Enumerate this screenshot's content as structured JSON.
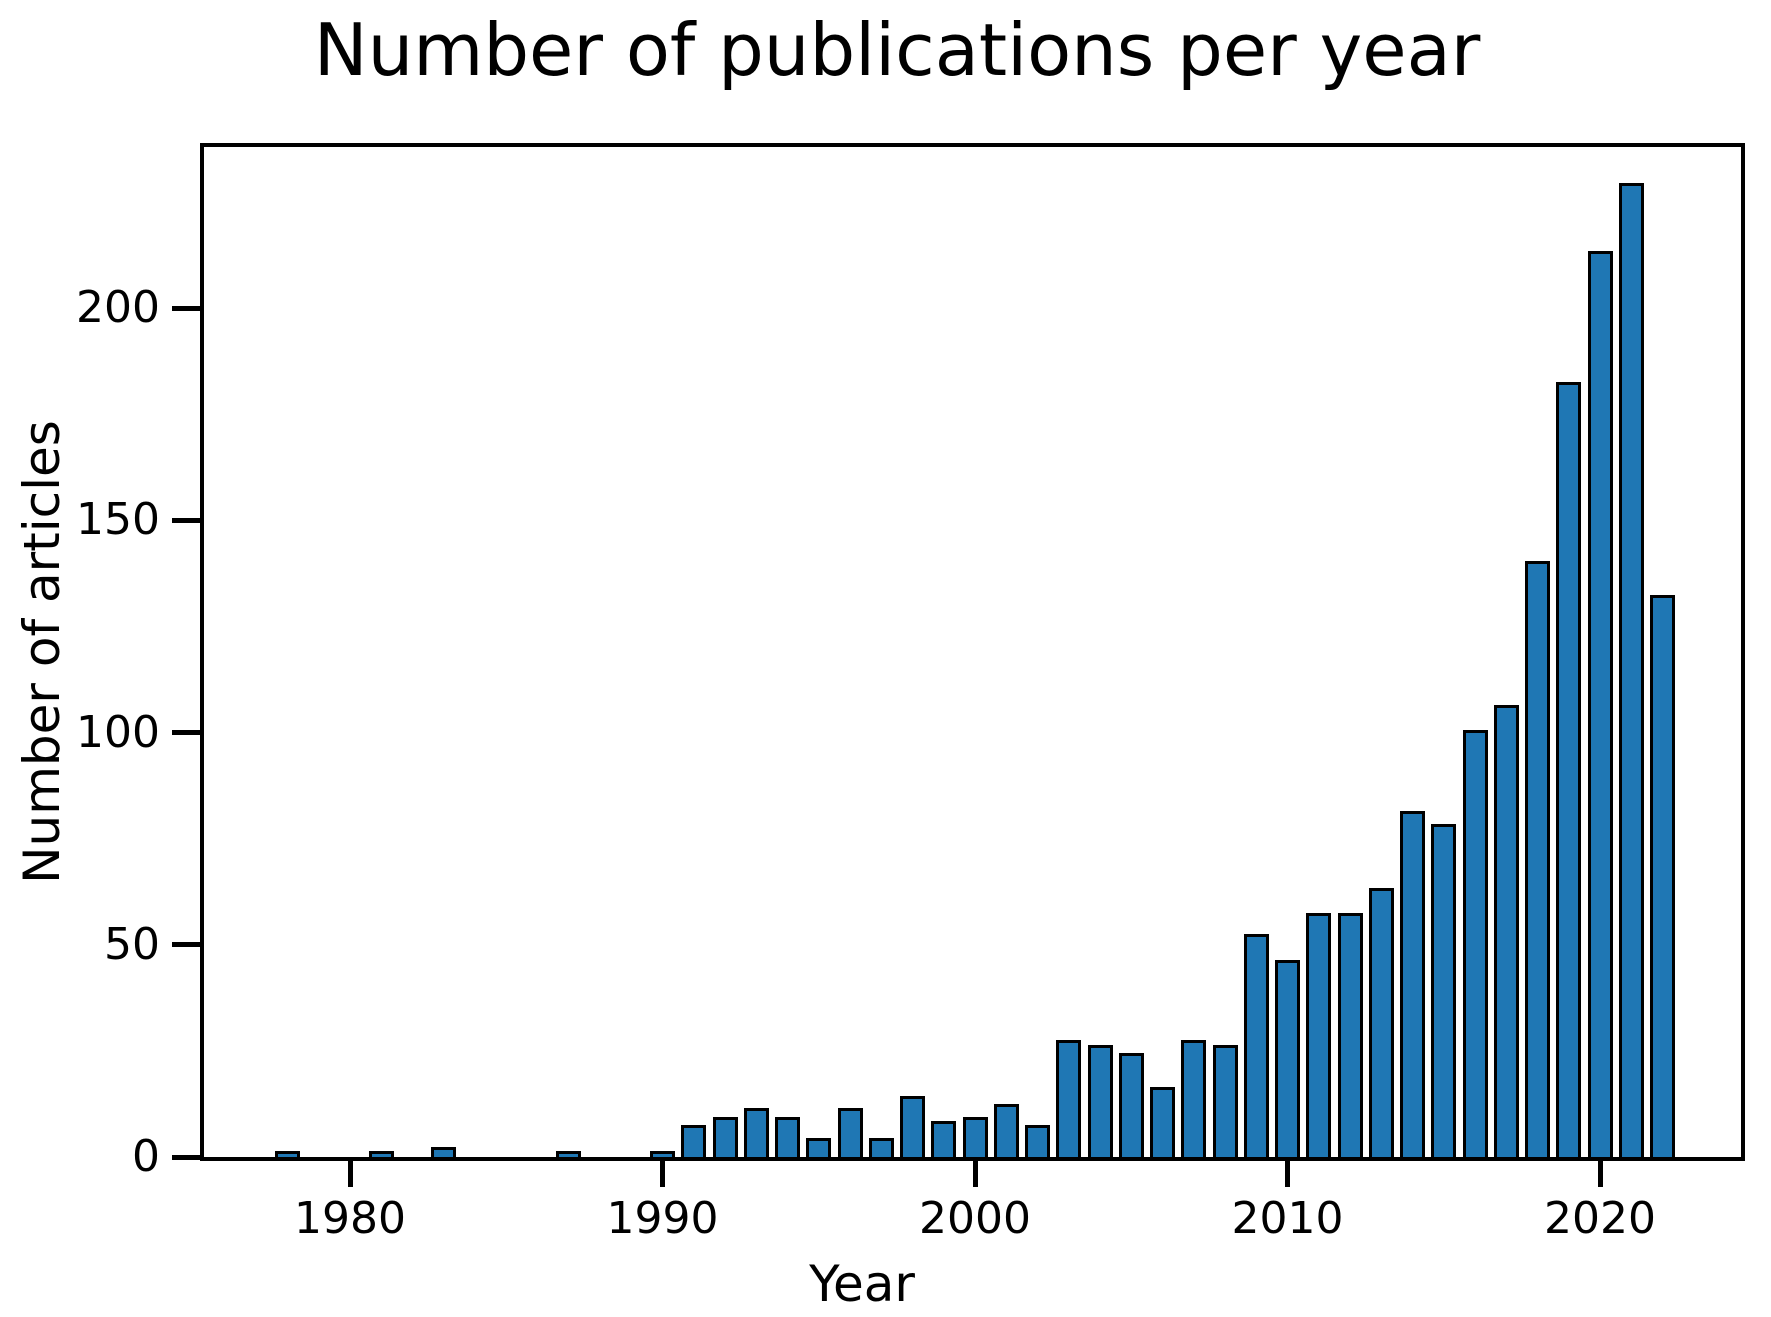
{
  "title": "Number of publications per year",
  "x_axis": {
    "label": "Year",
    "tick_labels": [
      "1980",
      "1990",
      "2000",
      "2010",
      "2020"
    ]
  },
  "y_axis": {
    "label": "Number of articles",
    "tick_labels": [
      "0",
      "50",
      "100",
      "150",
      "200"
    ]
  },
  "colors": {
    "bar_fill": "#1f77b4",
    "bar_edge": "#000000",
    "axis": "#000000",
    "background": "#ffffff"
  },
  "chart_data": {
    "type": "bar",
    "title": "Number of publications per year",
    "xlabel": "Year",
    "ylabel": "Number of articles",
    "x": [
      1978,
      1981,
      1983,
      1987,
      1990,
      1991,
      1992,
      1993,
      1994,
      1995,
      1996,
      1997,
      1998,
      1999,
      2000,
      2001,
      2002,
      2003,
      2004,
      2005,
      2006,
      2007,
      2008,
      2009,
      2010,
      2011,
      2012,
      2013,
      2014,
      2015,
      2016,
      2017,
      2018,
      2019,
      2020,
      2021,
      2022
    ],
    "values": [
      1,
      1,
      2,
      1,
      1,
      7,
      9,
      11,
      9,
      4,
      11,
      4,
      14,
      8,
      9,
      12,
      7,
      27,
      26,
      24,
      16,
      27,
      26,
      52,
      46,
      57,
      57,
      63,
      81,
      78,
      100,
      106,
      140,
      182,
      213,
      229,
      132
    ],
    "x_ticks": [
      1980,
      1990,
      2000,
      2010,
      2020
    ],
    "y_ticks": [
      0,
      50,
      100,
      150,
      200
    ],
    "xlim": [
      1975.3,
      2024.5
    ],
    "ylim": [
      0,
      239
    ],
    "grid": false,
    "legend": null
  }
}
